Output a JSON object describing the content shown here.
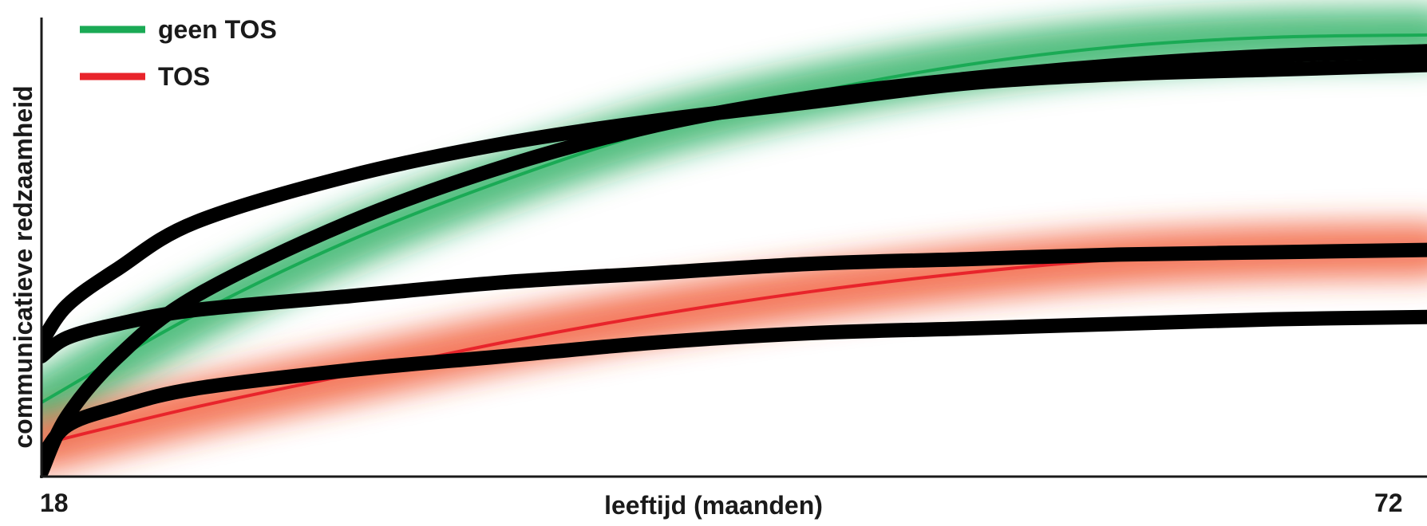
{
  "chart_data": {
    "type": "line",
    "title": "",
    "xlabel": "leeftijd (maanden)",
    "ylabel": "communicatieve redzaamheid",
    "xlim": [
      18,
      72
    ],
    "x_ticks": [
      "18",
      "72"
    ],
    "ylim": [
      0,
      100
    ],
    "grid": false,
    "legend_position": "top-left",
    "series": [
      {
        "name": "geen TOS",
        "color": "#1aaa55",
        "band_color": "#1aaa55",
        "x": [
          18,
          24,
          30,
          36,
          42,
          48,
          54,
          60,
          66,
          72
        ],
        "y": [
          15,
          34,
          50,
          63,
          74,
          82,
          88,
          92,
          94,
          94.5
        ]
      },
      {
        "name": "TOS",
        "color": "#e8242b",
        "band_color": "#f0502a",
        "x": [
          18,
          24,
          30,
          36,
          42,
          48,
          54,
          60,
          66,
          72
        ],
        "y": [
          6,
          14,
          21,
          28,
          34,
          39,
          43,
          46,
          47.5,
          48
        ]
      }
    ],
    "individual_curves": [
      {
        "x": [
          18,
          19,
          21,
          24,
          30,
          36,
          42,
          48,
          54,
          60,
          66,
          72
        ],
        "y": [
          28,
          36,
          44,
          54,
          64,
          71,
          76,
          80,
          84,
          86,
          87,
          88
        ]
      },
      {
        "x": [
          18,
          19,
          21,
          24,
          30,
          36,
          42,
          48,
          54,
          60,
          66,
          72
        ],
        "y": [
          0,
          12,
          25,
          38,
          54,
          66,
          75,
          81,
          85,
          88,
          90,
          91
        ]
      },
      {
        "x": [
          18,
          19,
          21,
          24,
          30,
          36,
          42,
          48,
          54,
          60,
          66,
          72
        ],
        "y": [
          25,
          29,
          32,
          35,
          38,
          41,
          43,
          45,
          46,
          47,
          47.5,
          48
        ]
      },
      {
        "x": [
          18,
          19,
          21,
          24,
          30,
          36,
          42,
          48,
          54,
          60,
          66,
          72
        ],
        "y": [
          3,
          10,
          14,
          18,
          22,
          25,
          28,
          30,
          31,
          32,
          33,
          33.5
        ]
      }
    ]
  }
}
